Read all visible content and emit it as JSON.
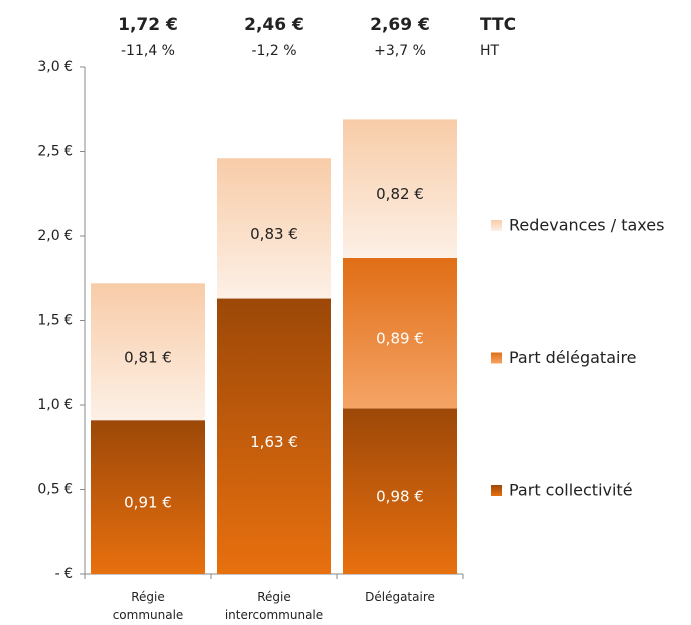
{
  "chart_data": {
    "type": "stacked_bar",
    "categories": [
      "Régie\ncommunale",
      "Régie\nintercommunale",
      "Délégataire"
    ],
    "series": [
      {
        "name": "Part collectivité",
        "color": "#9c4808",
        "color_end": "#e8700f",
        "label_color": "#ffffff",
        "values": [
          0.91,
          1.63,
          0.98
        ],
        "value_labels": [
          "0,91 €",
          "1,63 €",
          "0,98 €"
        ]
      },
      {
        "name": "Part délégataire",
        "color": "#e06e16",
        "color_end": "#f5a466",
        "label_color": "#ffffff",
        "values": [
          null,
          null,
          0.89
        ],
        "value_labels": [
          null,
          null,
          "0,89 €"
        ]
      },
      {
        "name": "Redevances / taxes",
        "color": "#f8cca8",
        "color_end": "#fdf0e6",
        "label_color": "#222222",
        "values": [
          0.81,
          0.83,
          0.82
        ],
        "value_labels": [
          "0,81 €",
          "0,83 €",
          "0,82 €"
        ]
      }
    ],
    "totals": {
      "name": "TTC",
      "values": [
        1.72,
        2.46,
        2.69
      ],
      "value_labels": [
        "1,72 €",
        "2,46 €",
        "2,69 €"
      ]
    },
    "changes": {
      "name": "HT",
      "values": [
        -11.4,
        -1.2,
        3.7
      ],
      "value_labels": [
        "-11,4 %",
        "-1,2 %",
        "+3,7 %"
      ]
    },
    "ylim": [
      0,
      3
    ],
    "yticks": [
      {
        "value": 0,
        "label": "- €"
      },
      {
        "value": 0.5,
        "label": "0,5 €"
      },
      {
        "value": 1,
        "label": "1,0 €"
      },
      {
        "value": 1.5,
        "label": "1,5 €"
      },
      {
        "value": 2,
        "label": "2,0 €"
      },
      {
        "value": 2.5,
        "label": "2,5 €"
      },
      {
        "value": 3,
        "label": "3,0 €"
      }
    ],
    "legend": "right"
  }
}
